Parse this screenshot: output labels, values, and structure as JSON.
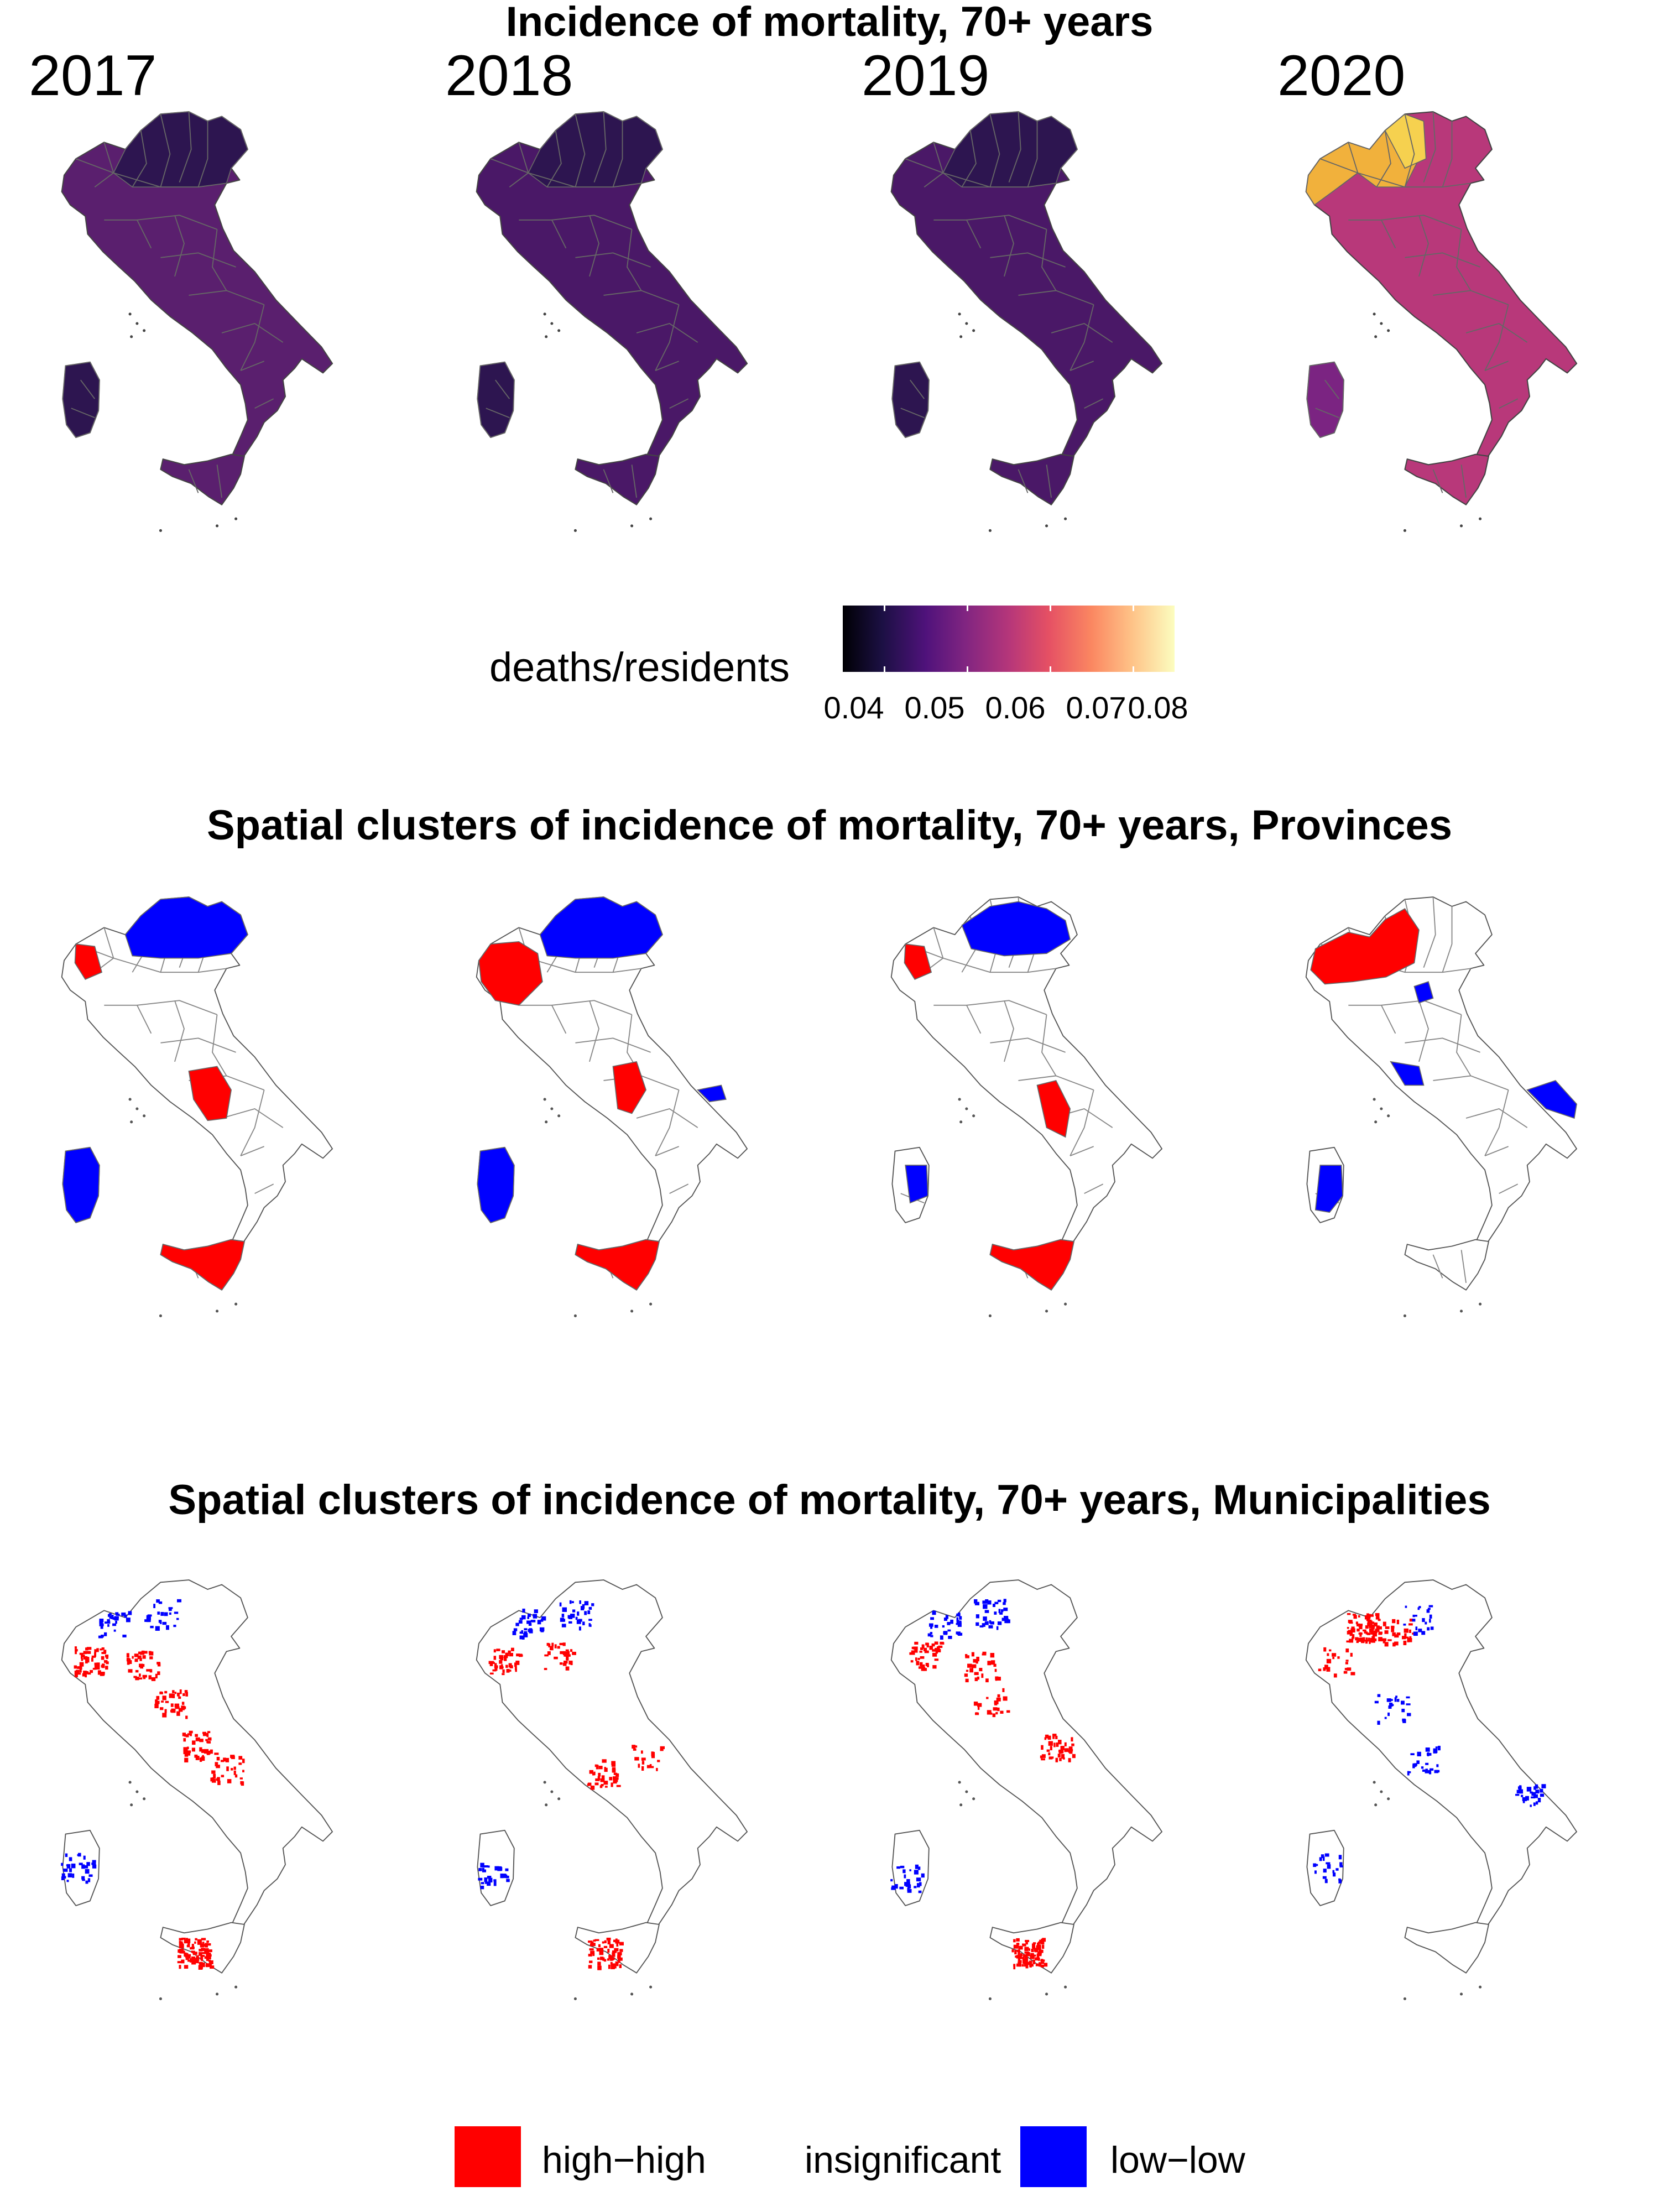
{
  "titles": {
    "incidence": "Incidence of mortality, 70+ years",
    "provinces": "Spatial clusters of incidence of mortality, 70+ years, Provinces",
    "municipalities": "Spatial clusters of incidence of mortality, 70+ years, Municipalities"
  },
  "years": [
    "2017",
    "2018",
    "2019",
    "2020"
  ],
  "colorbar": {
    "label": "deaths/residents",
    "ticks": [
      "0.04",
      "0.05",
      "0.06",
      "0.07",
      "0.08"
    ],
    "colors": [
      "#000004",
      "#1c1044",
      "#4f127b",
      "#812581",
      "#b5367a",
      "#e55064",
      "#fb8761",
      "#fec287",
      "#fcfdbf"
    ]
  },
  "cluster_legend": {
    "items": [
      {
        "label": "high−high",
        "color": "#ff0000"
      },
      {
        "label": "insignificant",
        "color": "#ffffff"
      },
      {
        "label": "low−low",
        "color": "#0000ff"
      }
    ]
  },
  "map_colors": {
    "incidence_by_year": [
      "#5a1f6e",
      "#4a1867",
      "#4a1867",
      "#b8387a"
    ],
    "hotspot_2020": "#f1b13c",
    "high_high": "#ff0000",
    "low_low": "#0000ff",
    "outline": "#555555"
  }
}
